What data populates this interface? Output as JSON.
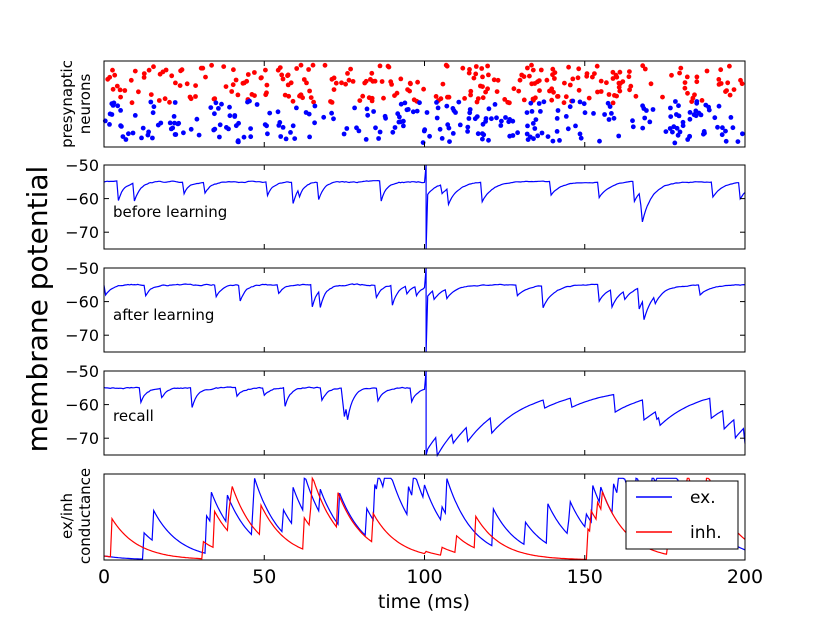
{
  "chart_data": {
    "type": "line",
    "xlabel": "time (ms)",
    "shared_ylabel": "membrane potential",
    "xlim": [
      0,
      200
    ],
    "xticks": [
      0,
      50,
      100,
      150,
      200
    ],
    "raster": {
      "ylabel_line1": "presynaptic",
      "ylabel_line2": "neurons",
      "groups": [
        {
          "name": "excitatory",
          "color": "#ff0000",
          "band": "upper"
        },
        {
          "name": "inhibitory",
          "color": "#0000ff",
          "band": "lower"
        }
      ]
    },
    "potential_panels": [
      {
        "label": "before learning",
        "ylim": [
          -75,
          -50
        ],
        "yticks": [
          -50,
          -60,
          -70
        ],
        "resting": -55,
        "spike_time": 100,
        "spike_peak": -50,
        "spike_trough": -75,
        "post_spike": -59.5,
        "recovery": "fast"
      },
      {
        "label": "after learning",
        "ylim": [
          -75,
          -50
        ],
        "yticks": [
          -50,
          -60,
          -70
        ],
        "resting": -55,
        "spike_time": 100,
        "spike_peak": -50,
        "spike_trough": -75,
        "post_spike": -59,
        "recovery": "fast"
      },
      {
        "label": "recall",
        "ylim": [
          -75,
          -50
        ],
        "yticks": [
          -50,
          -60,
          -70
        ],
        "resting": -55,
        "spike_time": 100,
        "spike_peak": -50,
        "spike_trough": -75,
        "post_spike": -74,
        "recovery": "slow"
      }
    ],
    "conductance": {
      "ylabel_line1": "ex/inh",
      "ylabel_line2": "conductance",
      "series": [
        {
          "name": "ex.",
          "color": "#0000ff"
        },
        {
          "name": "inh.",
          "color": "#ff0000"
        }
      ]
    }
  },
  "colors": {
    "ex": "#0000ff",
    "inh": "#ff0000"
  }
}
